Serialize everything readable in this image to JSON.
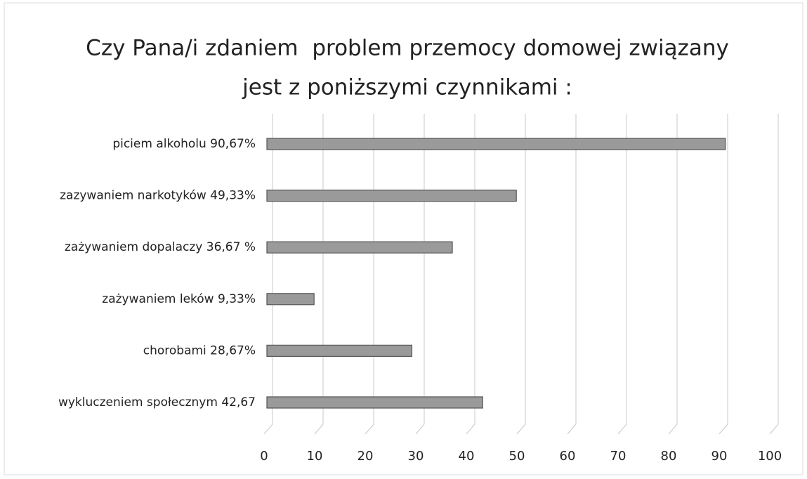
{
  "chart_data": {
    "type": "barh",
    "title": [
      "Czy Pana/i zdaniem  problem przemocy domowej związany",
      "jest z poniższymi czynnikami :"
    ],
    "categories": [
      "piciem alkoholu 90,67%",
      "zazywaniem narkotyków 49,33%",
      "zażywaniem dopalaczy 36,67 %",
      "zażywaniem leków 9,33%",
      "chorobami 28,67%",
      "wykluczeniem społecznym 42,67"
    ],
    "values": [
      90.67,
      49.33,
      36.67,
      9.33,
      28.67,
      42.67
    ],
    "color": "#9a9a9a",
    "xlim": [
      0,
      100
    ],
    "xticks": [
      0,
      10,
      20,
      30,
      40,
      50,
      60,
      70,
      80,
      90,
      100
    ],
    "grid": true
  }
}
